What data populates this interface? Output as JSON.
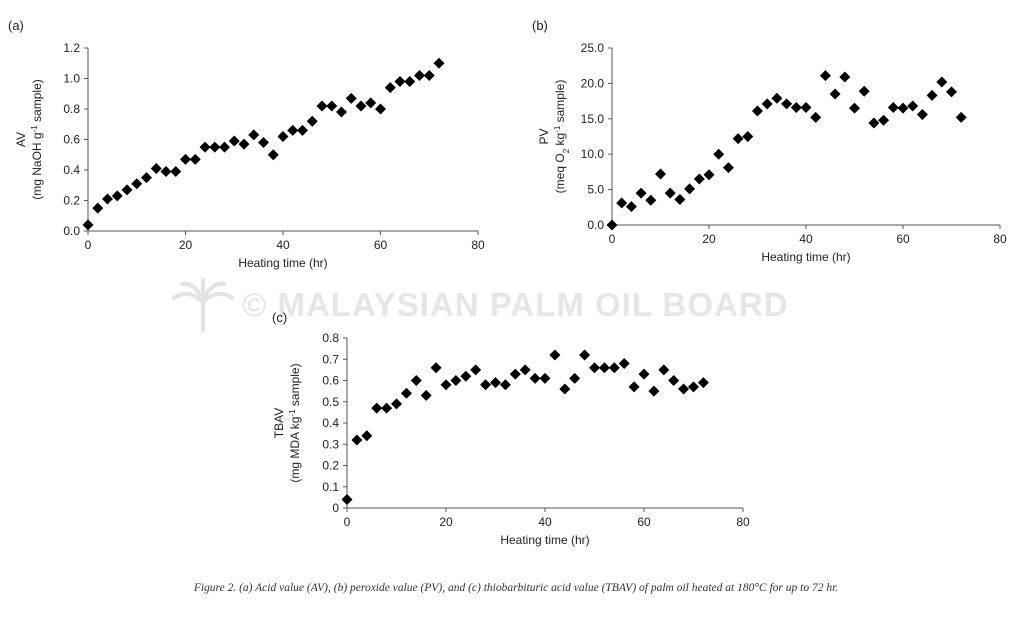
{
  "caption": "Figure 2. (a) Acid value (AV), (b) peroxide value (PV), and (c) thiobarbituric acid value (TBAV) of palm oil heated at 180°C for up to 72 hr.",
  "watermark": "© MALAYSIAN PALM OIL BOARD",
  "chart_data": [
    {
      "type": "scatter",
      "panel_label": "(a)",
      "xlabel": "Heating time (hr)",
      "ylabel_line1": "AV",
      "ylabel_line2_pre": "(mg NaOH g",
      "ylabel_line2_sup": "-1",
      "ylabel_line2_post": " sample)",
      "xlim": [
        0,
        80
      ],
      "ylim": [
        0,
        1.2
      ],
      "xticks": [
        "0",
        "20",
        "40",
        "60",
        "80"
      ],
      "yticks": [
        "0.0",
        "0.2",
        "0.4",
        "0.6",
        "0.8",
        "1.0",
        "1.2"
      ],
      "marker_color": "#000000",
      "x": [
        0,
        2,
        4,
        6,
        8,
        10,
        12,
        14,
        16,
        18,
        20,
        22,
        24,
        26,
        28,
        30,
        32,
        34,
        36,
        38,
        40,
        42,
        44,
        46,
        48,
        50,
        52,
        54,
        56,
        58,
        60,
        62,
        64,
        66,
        68,
        70,
        72
      ],
      "y": [
        0.04,
        0.15,
        0.21,
        0.23,
        0.27,
        0.31,
        0.35,
        0.41,
        0.39,
        0.39,
        0.47,
        0.47,
        0.55,
        0.55,
        0.55,
        0.59,
        0.57,
        0.63,
        0.58,
        0.5,
        0.62,
        0.66,
        0.66,
        0.72,
        0.82,
        0.82,
        0.78,
        0.87,
        0.82,
        0.84,
        0.8,
        0.94,
        0.98,
        0.98,
        1.02,
        1.02,
        1.1
      ]
    },
    {
      "type": "scatter",
      "panel_label": "(b)",
      "xlabel": "Heating time (hr)",
      "ylabel_line1": "PV",
      "ylabel_line2_pre": "(meq O",
      "ylabel_line2_sub": "2",
      "ylabel_line2_mid": " kg",
      "ylabel_line2_sup": "-1",
      "ylabel_line2_post": " sample)",
      "xlim": [
        0,
        80
      ],
      "ylim": [
        0,
        25
      ],
      "xticks": [
        "0",
        "20",
        "40",
        "60",
        "80"
      ],
      "yticks": [
        "0.0",
        "5.0",
        "10.0",
        "15.0",
        "20.0",
        "25.0"
      ],
      "marker_color": "#000000",
      "x": [
        0,
        2,
        4,
        6,
        8,
        10,
        12,
        14,
        16,
        18,
        20,
        22,
        24,
        26,
        28,
        30,
        32,
        34,
        36,
        38,
        40,
        42,
        44,
        46,
        48,
        50,
        52,
        54,
        56,
        58,
        60,
        62,
        64,
        66,
        68,
        70,
        72
      ],
      "y": [
        0.0,
        3.1,
        2.6,
        4.5,
        3.5,
        7.2,
        4.5,
        3.6,
        5.1,
        6.5,
        7.1,
        10.0,
        8.1,
        12.2,
        12.5,
        16.1,
        17.1,
        17.9,
        17.1,
        16.6,
        16.6,
        15.2,
        21.1,
        18.5,
        20.9,
        16.5,
        18.9,
        14.4,
        14.8,
        16.6,
        16.5,
        16.8,
        15.6,
        18.3,
        20.2,
        18.8,
        15.2
      ]
    },
    {
      "type": "scatter",
      "panel_label": "(c)",
      "xlabel": "Heating time (hr)",
      "ylabel_line1": "TBAV",
      "ylabel_line2_pre": "(mg MDA kg",
      "ylabel_line2_sup": "-1",
      "ylabel_line2_post": " sample)",
      "xlim": [
        0,
        80
      ],
      "ylim": [
        0,
        0.8
      ],
      "xticks": [
        "0",
        "20",
        "40",
        "60",
        "80"
      ],
      "yticks": [
        "0",
        "0.1",
        "0.2",
        "0.3",
        "0.4",
        "0.5",
        "0.6",
        "0.7",
        "0.8"
      ],
      "marker_color": "#000000",
      "x": [
        0,
        2,
        4,
        6,
        8,
        10,
        12,
        14,
        16,
        18,
        20,
        22,
        24,
        26,
        28,
        30,
        32,
        34,
        36,
        38,
        40,
        42,
        44,
        46,
        48,
        50,
        52,
        54,
        56,
        58,
        60,
        62,
        64,
        66,
        68,
        70,
        72
      ],
      "y": [
        0.04,
        0.32,
        0.34,
        0.47,
        0.47,
        0.49,
        0.54,
        0.6,
        0.53,
        0.66,
        0.58,
        0.6,
        0.62,
        0.65,
        0.58,
        0.59,
        0.58,
        0.63,
        0.65,
        0.61,
        0.61,
        0.72,
        0.56,
        0.61,
        0.72,
        0.66,
        0.66,
        0.66,
        0.68,
        0.57,
        0.63,
        0.55,
        0.65,
        0.6,
        0.56,
        0.57,
        0.59
      ]
    }
  ]
}
